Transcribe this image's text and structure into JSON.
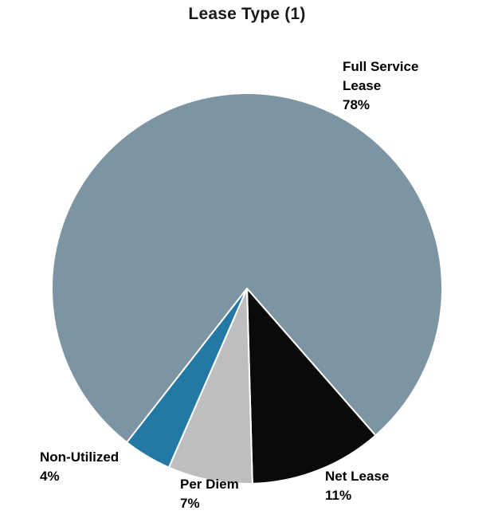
{
  "chart_data": {
    "type": "pie",
    "title": "Lease Type (1)",
    "start_angle_deg": 218,
    "direction": "clockwise",
    "stroke_color": "#ffffff",
    "legend_position": "none",
    "labels_outside": true,
    "slices": [
      {
        "label": "Full Service Lease",
        "value": 78,
        "pct_label": "78%",
        "color": "#7D95A2"
      },
      {
        "label": "Net Lease",
        "value": 11,
        "pct_label": "11%",
        "color": "#0A0A0A"
      },
      {
        "label": "Per Diem",
        "value": 7,
        "pct_label": "7%",
        "color": "#BCBEC0"
      },
      {
        "label": "Non-Utilized",
        "value": 4,
        "pct_label": "4%",
        "color": "#2478A4"
      }
    ]
  },
  "labels": {
    "full_service": {
      "lines": [
        "Full Service",
        "Lease",
        "78%"
      ]
    },
    "non_utilized": {
      "lines": [
        "Non-Utilized",
        "4%"
      ]
    },
    "per_diem": {
      "lines": [
        "Per Diem",
        "7%"
      ]
    },
    "net_lease": {
      "lines": [
        "Net Lease",
        "11%"
      ]
    }
  }
}
